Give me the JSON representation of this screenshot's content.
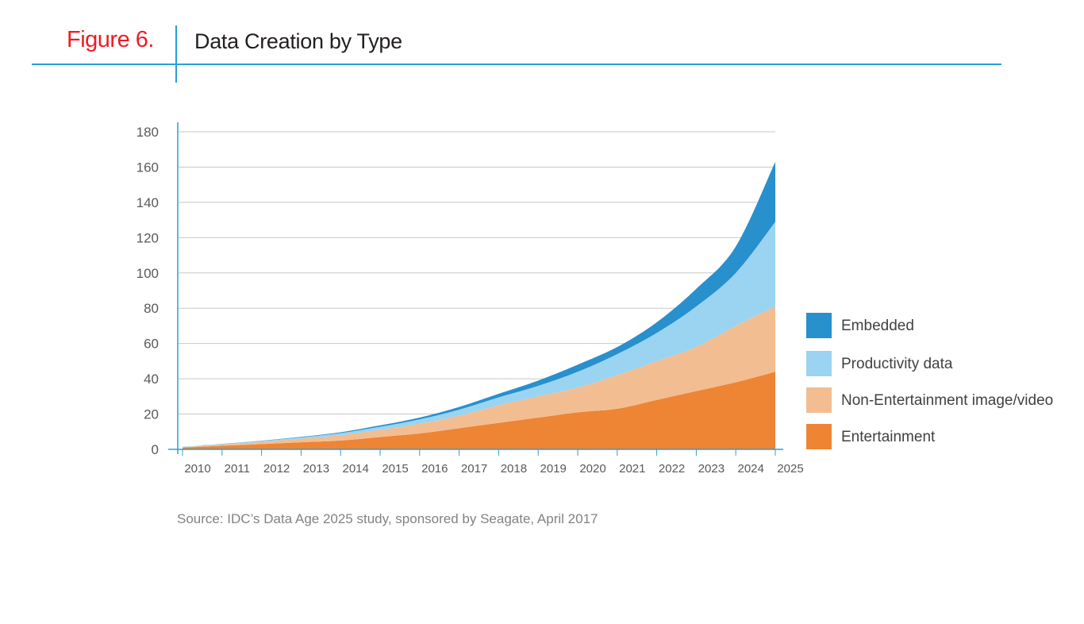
{
  "figure": {
    "label": "Figure 6.",
    "title": "Data Creation by Type",
    "label_color": "#ee1c25",
    "accent_color": "#2aa0d8"
  },
  "source": "Source: IDC’s Data Age 2025 study, sponsored by Seagate, April 2017",
  "chart_data": {
    "type": "area",
    "stacked": true,
    "title": "Data Creation by Type",
    "xlabel": "",
    "ylabel": "",
    "x": [
      "2010",
      "2011",
      "2012",
      "2013",
      "2014",
      "2015",
      "2016",
      "2017",
      "2018",
      "2019",
      "2020",
      "2021",
      "2022",
      "2023",
      "2024",
      "2025"
    ],
    "ylim": [
      0,
      180
    ],
    "yticks": [
      0,
      20,
      40,
      60,
      80,
      100,
      120,
      140,
      160,
      180
    ],
    "grid": true,
    "legend_position": "right",
    "series": [
      {
        "name": "Entertainment",
        "color": "#ed8535",
        "values": [
          1,
          2,
          3,
          4,
          5,
          7,
          9,
          12,
          15,
          18,
          21,
          23,
          28,
          33,
          38,
          44
        ]
      },
      {
        "name": "Non-Entertainment image/video",
        "color": "#f3bd92",
        "values": [
          0.3,
          0.7,
          1.2,
          2,
          3,
          4,
          5.5,
          7,
          10,
          12,
          14,
          19,
          22,
          25,
          32,
          37
        ]
      },
      {
        "name": "Productivity data",
        "color": "#9ad4f1",
        "values": [
          0.1,
          0.3,
          0.5,
          0.8,
          1.2,
          1.8,
          2.5,
          3.5,
          4.5,
          6,
          9,
          12,
          16,
          23,
          30,
          48
        ]
      },
      {
        "name": "Embedded",
        "color": "#2790cd",
        "values": [
          0.05,
          0.1,
          0.2,
          0.3,
          0.5,
          0.8,
          1,
          1.5,
          2,
          3,
          4,
          4,
          6,
          10,
          15,
          34
        ]
      }
    ]
  }
}
